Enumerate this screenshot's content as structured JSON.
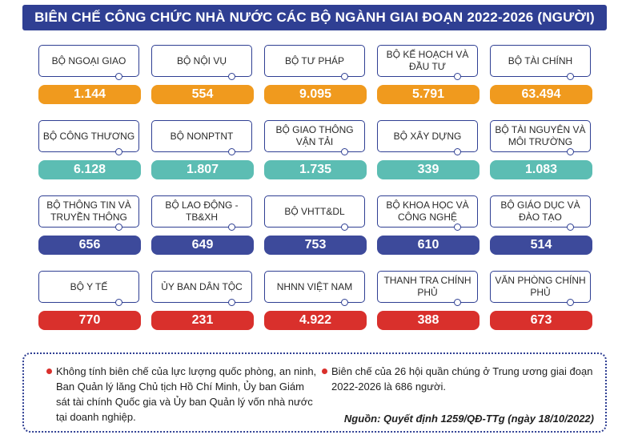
{
  "title": "BIÊN CHẾ CÔNG CHỨC NHÀ NƯỚC CÁC BỘ NGÀNH GIAI ĐOẠN 2022-2026 (NGƯỜI)",
  "colors": {
    "title_bg": "#2f3f93",
    "row_orange": "#f09a1e",
    "row_teal": "#5cbdb3",
    "row_blue": "#3d4a9b",
    "row_red": "#d9302c"
  },
  "chart_data": {
    "type": "table",
    "title": "BIÊN CHẾ CÔNG CHỨC NHÀ NƯỚC CÁC BỘ NGÀNH GIAI ĐOẠN 2022-2026 (NGƯỜI)",
    "rows": [
      {
        "color": "#f09a1e",
        "items": [
          {
            "name": "BỘ NGOẠI GIAO",
            "value": "1.144"
          },
          {
            "name": "BỘ NỘI VỤ",
            "value": "554"
          },
          {
            "name": "BỘ TƯ PHÁP",
            "value": "9.095"
          },
          {
            "name": "BỘ KẾ HOẠCH VÀ ĐẦU TƯ",
            "value": "5.791"
          },
          {
            "name": "BỘ TÀI CHÍNH",
            "value": "63.494"
          }
        ]
      },
      {
        "color": "#5cbdb3",
        "items": [
          {
            "name": "BỘ CÔNG THƯƠNG",
            "value": "6.128"
          },
          {
            "name": "BỘ NONPTNT",
            "value": "1.807"
          },
          {
            "name": "BỘ GIAO THÔNG VẬN TẢI",
            "value": "1.735"
          },
          {
            "name": "BỘ XÂY DỰNG",
            "value": "339"
          },
          {
            "name": "BỘ TÀI NGUYÊN VÀ MÔI TRƯỜNG",
            "value": "1.083"
          }
        ]
      },
      {
        "color": "#3d4a9b",
        "items": [
          {
            "name": "BỘ THÔNG TIN VÀ TRUYỀN THÔNG",
            "value": "656"
          },
          {
            "name": "BỘ LAO ĐỘNG - TB&XH",
            "value": "649"
          },
          {
            "name": "BỘ VHTT&DL",
            "value": "753"
          },
          {
            "name": "BỘ KHOA HỌC VÀ CÔNG NGHỆ",
            "value": "610"
          },
          {
            "name": "BỘ GIÁO DỤC VÀ ĐÀO TẠO",
            "value": "514"
          }
        ]
      },
      {
        "color": "#d9302c",
        "items": [
          {
            "name": "BỘ Y TẾ",
            "value": "770"
          },
          {
            "name": "ỦY BAN DÂN TỘC",
            "value": "231"
          },
          {
            "name": "NHNN VIỆT NAM",
            "value": "4.922"
          },
          {
            "name": "THANH TRA CHÍNH PHỦ",
            "value": "388"
          },
          {
            "name": "VĂN PHÒNG CHÍNH PHỦ",
            "value": "673"
          }
        ]
      }
    ]
  },
  "notes": {
    "left": "Không tính biên chế của lực lượng quốc phòng, an ninh, Ban Quản lý lăng Chủ tịch Hồ Chí Minh, Ủy ban Giám sát tài chính Quốc gia và Ủy ban Quản lý vốn nhà nước tại doanh nghiệp.",
    "right": "Biên chế của 26 hội quần chúng ở Trung ương giai đoạn 2022-2026 là 686 người.",
    "source": "Nguồn: Quyết định 1259/QĐ-TTg (ngày 18/10/2022)"
  }
}
